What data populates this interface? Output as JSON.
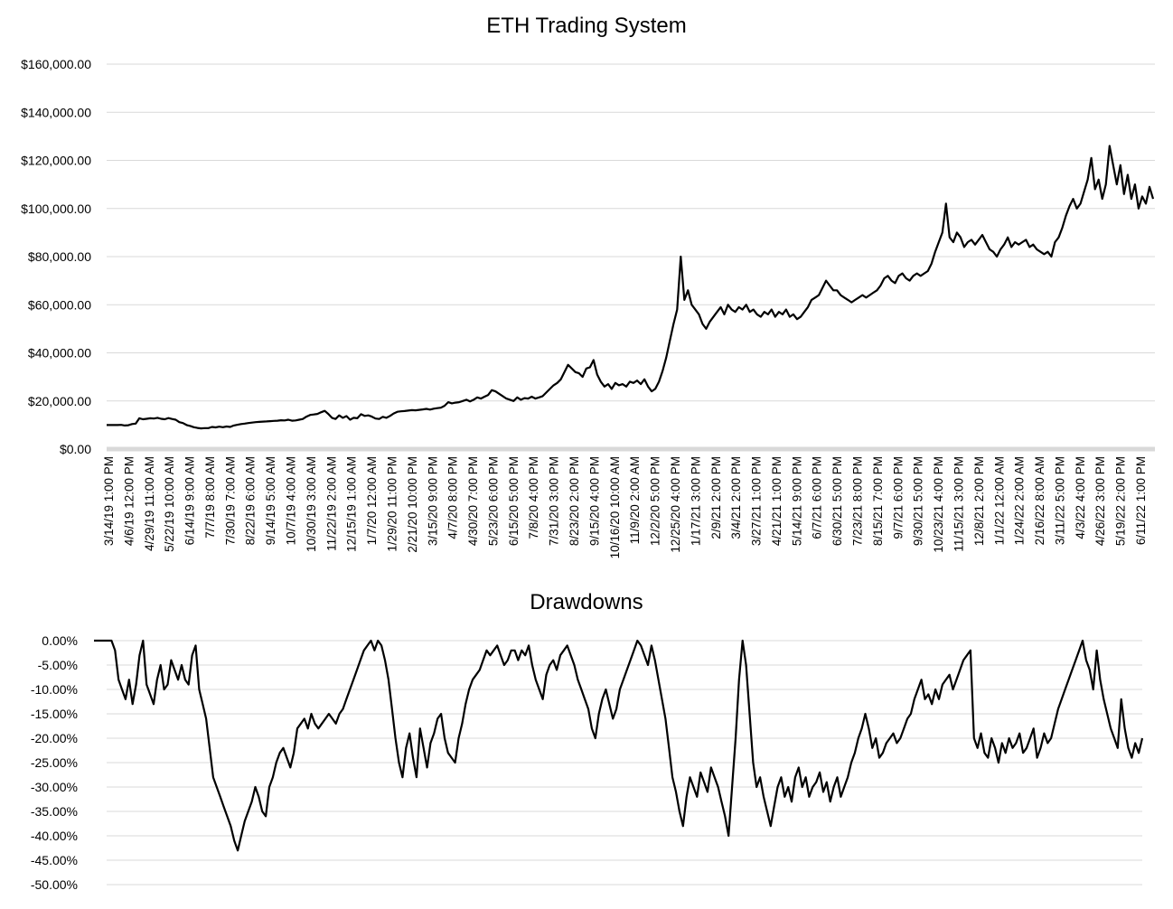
{
  "chart_data": [
    {
      "type": "line",
      "title": "ETH Trading System",
      "ylim": [
        0,
        160000
      ],
      "y_tick_labels": [
        "$0.00",
        "$20,000.00",
        "$40,000.00",
        "$60,000.00",
        "$80,000.00",
        "$100,000.00",
        "$120,000.00",
        "$140,000.00",
        "$160,000.00"
      ],
      "x_tick_labels": [
        "3/14/19 1:00 PM",
        "4/6/19 12:00 PM",
        "4/29/19 11:00 AM",
        "5/22/19 10:00 AM",
        "6/14/19 9:00 AM",
        "7/7/19 8:00 AM",
        "7/30/19 7:00 AM",
        "8/22/19 6:00 AM",
        "9/14/19 5:00 AM",
        "10/7/19 4:00 AM",
        "10/30/19 3:00 AM",
        "11/22/19 2:00 AM",
        "12/15/19 1:00 AM",
        "1/7/20 12:00 AM",
        "1/29/20 11:00 PM",
        "2/21/20 10:00 PM",
        "3/15/20 9:00 PM",
        "4/7/20 8:00 PM",
        "4/30/20 7:00 PM",
        "5/23/20 6:00 PM",
        "6/15/20 5:00 PM",
        "7/8/20 4:00 PM",
        "7/31/20 3:00 PM",
        "8/23/20 2:00 PM",
        "9/15/20 4:00 PM",
        "10/16/20 10:00 AM",
        "11/9/20 2:00 AM",
        "12/2/20 5:00 PM",
        "12/25/20 4:00 PM",
        "1/17/21 3:00 PM",
        "2/9/21 2:00 PM",
        "3/4/21 2:00 PM",
        "3/27/21 1:00 PM",
        "4/21/21 1:00 PM",
        "5/14/21 9:00 PM",
        "6/7/21 6:00 PM",
        "6/30/21 5:00 PM",
        "7/23/21 8:00 PM",
        "8/15/21 7:00 PM",
        "9/7/21 6:00 PM",
        "9/30/21 5:00 PM",
        "10/23/21 4:00 PM",
        "11/15/21 3:00 PM",
        "12/8/21 2:00 PM",
        "1/1/22 12:00 AM",
        "1/24/22 2:00 AM",
        "2/16/22 8:00 AM",
        "3/11/22 5:00 PM",
        "4/3/22 4:00 PM",
        "4/26/22 3:00 PM",
        "5/19/22 2:00 PM",
        "6/11/22 1:00 PM"
      ],
      "grid": true,
      "legend": "none",
      "series": [
        {
          "values": [
            10000,
            10000,
            10000,
            10000,
            10050,
            9800,
            9900,
            10400,
            10600,
            12800,
            12400,
            12600,
            12800,
            12700,
            13000,
            12600,
            12400,
            12900,
            12500,
            12200,
            11200,
            10800,
            10000,
            9600,
            9100,
            8800,
            8600,
            8700,
            8700,
            9200,
            9000,
            9300,
            9100,
            9400,
            9200,
            9800,
            10100,
            10400,
            10600,
            10800,
            11000,
            11200,
            11300,
            11400,
            11500,
            11600,
            11700,
            11800,
            12000,
            11900,
            12200,
            11800,
            11900,
            12200,
            12500,
            13500,
            14200,
            14400,
            14600,
            15300,
            15900,
            14600,
            13000,
            12500,
            14000,
            13000,
            13700,
            12200,
            13000,
            12800,
            14500,
            13800,
            14000,
            13500,
            12700,
            12500,
            13400,
            13000,
            13800,
            14800,
            15500,
            15700,
            15800,
            16000,
            16200,
            16100,
            16300,
            16500,
            16700,
            16400,
            16800,
            17000,
            17200,
            18000,
            19500,
            19000,
            19300,
            19500,
            20000,
            20500,
            19800,
            20500,
            21500,
            21000,
            21800,
            22500,
            24500,
            24000,
            23000,
            22000,
            21000,
            20500,
            20000,
            21500,
            20500,
            21200,
            21000,
            21800,
            21000,
            21500,
            22000,
            23500,
            25000,
            26500,
            27500,
            29000,
            32000,
            35000,
            33500,
            32000,
            31500,
            30000,
            33500,
            34000,
            37000,
            31000,
            28000,
            26000,
            27000,
            25000,
            27500,
            26500,
            27000,
            26000,
            28000,
            27500,
            28500,
            27000,
            29000,
            26000,
            24000,
            25000,
            28000,
            32500,
            38000,
            45000,
            52000,
            58000,
            80000,
            62000,
            66000,
            60000,
            58000,
            56000,
            52000,
            50000,
            53000,
            55000,
            57000,
            59000,
            56000,
            60000,
            58000,
            57000,
            59000,
            58000,
            60000,
            57000,
            58000,
            56000,
            55000,
            57000,
            56000,
            58000,
            55000,
            57000,
            56000,
            58000,
            55000,
            56000,
            54000,
            55000,
            57000,
            59000,
            62000,
            63000,
            64000,
            67000,
            70000,
            68000,
            66000,
            66000,
            64000,
            63000,
            62000,
            61000,
            62000,
            63000,
            64000,
            63000,
            64000,
            65000,
            66000,
            68000,
            71000,
            72000,
            70000,
            69000,
            72000,
            73000,
            71000,
            70000,
            72000,
            73000,
            72000,
            73000,
            74000,
            77000,
            82000,
            86000,
            90000,
            102000,
            88000,
            86000,
            90000,
            88000,
            84000,
            86000,
            87000,
            85000,
            87000,
            89000,
            86000,
            83000,
            82000,
            80000,
            83000,
            85000,
            88000,
            84000,
            86000,
            85000,
            86000,
            87000,
            84000,
            85000,
            83000,
            82000,
            81000,
            82000,
            80000,
            86000,
            88000,
            92000,
            97000,
            101000,
            104000,
            100000,
            102000,
            107000,
            112000,
            121000,
            108000,
            112000,
            104000,
            110000,
            126000,
            118000,
            110000,
            118000,
            106000,
            114000,
            104000,
            110000,
            100000,
            105000,
            102000,
            109000,
            104000
          ]
        }
      ]
    },
    {
      "type": "line",
      "title": "Drawdowns",
      "ylim": [
        -50,
        0
      ],
      "y_tick_labels": [
        "0.00%",
        "-5.00%",
        "-10.00%",
        "-15.00%",
        "-20.00%",
        "-25.00%",
        "-30.00%",
        "-35.00%",
        "-40.00%",
        "-45.00%",
        "-50.00%"
      ],
      "grid": true,
      "legend": "none",
      "series": [
        {
          "values": [
            0,
            0,
            0,
            0,
            0,
            0,
            -2,
            -8,
            -10,
            -12,
            -8,
            -13,
            -9,
            -3,
            0,
            -9,
            -11,
            -13,
            -8,
            -5,
            -10,
            -9,
            -4,
            -6,
            -8,
            -5,
            -8,
            -9,
            -3,
            -1,
            -10,
            -13,
            -16,
            -22,
            -28,
            -30,
            -32,
            -34,
            -36,
            -38,
            -41,
            -43,
            -40,
            -37,
            -35,
            -33,
            -30,
            -32,
            -35,
            -36,
            -30,
            -28,
            -25,
            -23,
            -22,
            -24,
            -26,
            -23,
            -18,
            -17,
            -16,
            -18,
            -15,
            -17,
            -18,
            -17,
            -16,
            -15,
            -16,
            -17,
            -15,
            -14,
            -12,
            -10,
            -8,
            -6,
            -4,
            -2,
            -1,
            0,
            -2,
            0,
            -1,
            -4,
            -8,
            -14,
            -20,
            -25,
            -28,
            -22,
            -19,
            -24,
            -28,
            -18,
            -22,
            -26,
            -21,
            -19,
            -16,
            -15,
            -20,
            -23,
            -24,
            -25,
            -20,
            -17,
            -13,
            -10,
            -8,
            -7,
            -6,
            -4,
            -2,
            -3,
            -2,
            -1,
            -3,
            -5,
            -4,
            -2,
            -2,
            -4,
            -2,
            -3,
            -1,
            -5,
            -8,
            -10,
            -12,
            -7,
            -5,
            -4,
            -6,
            -3,
            -2,
            -1,
            -3,
            -5,
            -8,
            -10,
            -12,
            -14,
            -18,
            -20,
            -15,
            -12,
            -10,
            -13,
            -16,
            -14,
            -10,
            -8,
            -6,
            -4,
            -2,
            0,
            -1,
            -3,
            -5,
            -1,
            -4,
            -8,
            -12,
            -16,
            -22,
            -28,
            -31,
            -35,
            -38,
            -32,
            -28,
            -30,
            -32,
            -27,
            -29,
            -31,
            -26,
            -28,
            -30,
            -33,
            -36,
            -40,
            -30,
            -20,
            -8,
            0,
            -5,
            -15,
            -25,
            -30,
            -28,
            -32,
            -35,
            -38,
            -34,
            -30,
            -28,
            -32,
            -30,
            -33,
            -28,
            -26,
            -30,
            -28,
            -32,
            -30,
            -29,
            -27,
            -31,
            -29,
            -33,
            -30,
            -28,
            -32,
            -30,
            -28,
            -25,
            -23,
            -20,
            -18,
            -15,
            -18,
            -22,
            -20,
            -24,
            -23,
            -21,
            -20,
            -19,
            -21,
            -20,
            -18,
            -16,
            -15,
            -12,
            -10,
            -8,
            -12,
            -11,
            -13,
            -10,
            -12,
            -9,
            -8,
            -7,
            -10,
            -8,
            -6,
            -4,
            -3,
            -2,
            -20,
            -22,
            -19,
            -23,
            -24,
            -20,
            -22,
            -25,
            -21,
            -23,
            -20,
            -22,
            -21,
            -19,
            -23,
            -22,
            -20,
            -18,
            -24,
            -22,
            -19,
            -21,
            -20,
            -17,
            -14,
            -12,
            -10,
            -8,
            -6,
            -4,
            -2,
            0,
            -4,
            -6,
            -10,
            -2,
            -8,
            -12,
            -15,
            -18,
            -20,
            -22,
            -12,
            -18,
            -22,
            -24,
            -21,
            -23,
            -20
          ]
        }
      ]
    }
  ]
}
